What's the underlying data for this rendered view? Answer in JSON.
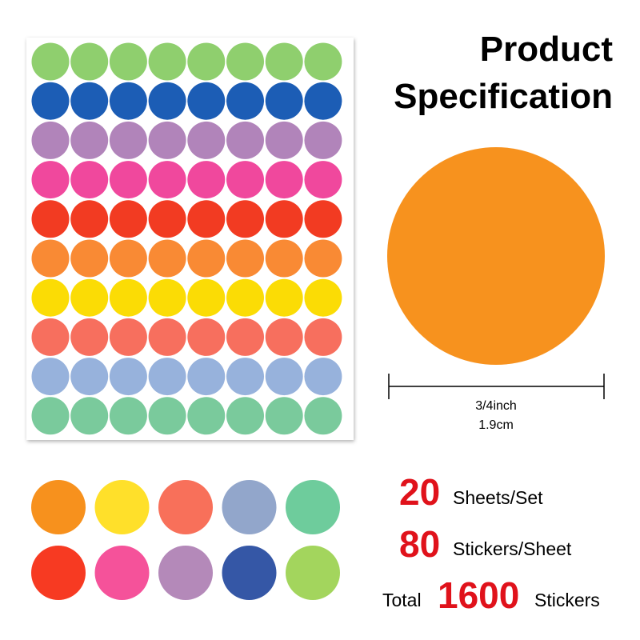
{
  "header": {
    "title_lines": [
      "Product",
      "Specification"
    ]
  },
  "dimension": {
    "inch": "3/4inch",
    "cm": "1.9cm"
  },
  "specs": [
    {
      "number": "20",
      "label": "Sheets/Set"
    },
    {
      "number": "80",
      "label": "Stickers/Sheet"
    },
    {
      "prefix": "Total",
      "number": "1600",
      "label": "Stickers"
    }
  ]
}
